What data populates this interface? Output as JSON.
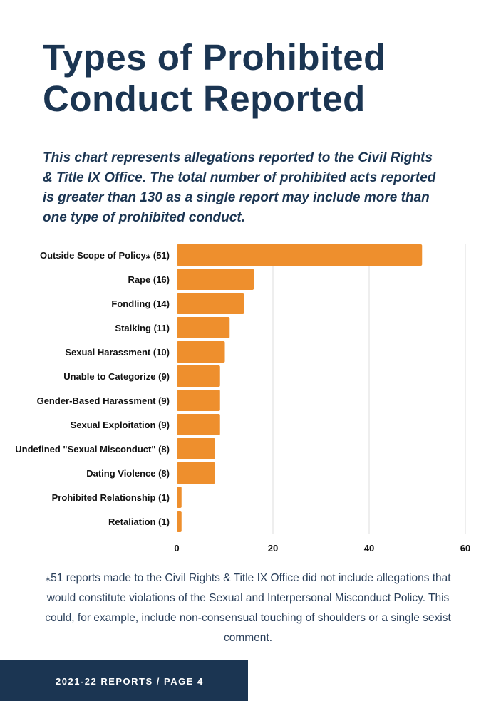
{
  "header": {
    "title_line1": "Types of Prohibited",
    "title_line2": "Conduct Reported",
    "subtitle": "This chart represents allegations reported to the Civil Rights & Title IX Office. The total number of prohibited acts reported is greater than 130 as a single report may include more than one type of prohibited conduct."
  },
  "chart_data": {
    "type": "bar",
    "orientation": "horizontal",
    "categories": [
      "Outside Scope of Policy⁎ (51)",
      "Rape (16)",
      "Fondling (14)",
      "Stalking (11)",
      "Sexual Harassment (10)",
      "Unable to Categorize (9)",
      "Gender-Based Harassment (9)",
      "Sexual Exploitation (9)",
      "Undefined \"Sexual Misconduct\" (8)",
      "Dating Violence (8)",
      "Prohibited Relationship (1)",
      "Retaliation (1)"
    ],
    "values": [
      51,
      16,
      14,
      11,
      10,
      9,
      9,
      9,
      8,
      8,
      1,
      1
    ],
    "xlim": [
      0,
      60
    ],
    "xticks": [
      "0",
      "20",
      "40",
      "60"
    ],
    "grid": true,
    "bar_color": "#ee8f2d",
    "title": "",
    "xlabel": "",
    "ylabel": ""
  },
  "footnote": "⁎51 reports made to the Civil Rights & Title IX Office did not include allegations that would constitute violations of the Sexual and Interpersonal Misconduct Policy. This could, for example, include non-consensual touching of shoulders or a single sexist comment.",
  "footer": {
    "label": "2021-22 REPORTS / PAGE 4"
  }
}
